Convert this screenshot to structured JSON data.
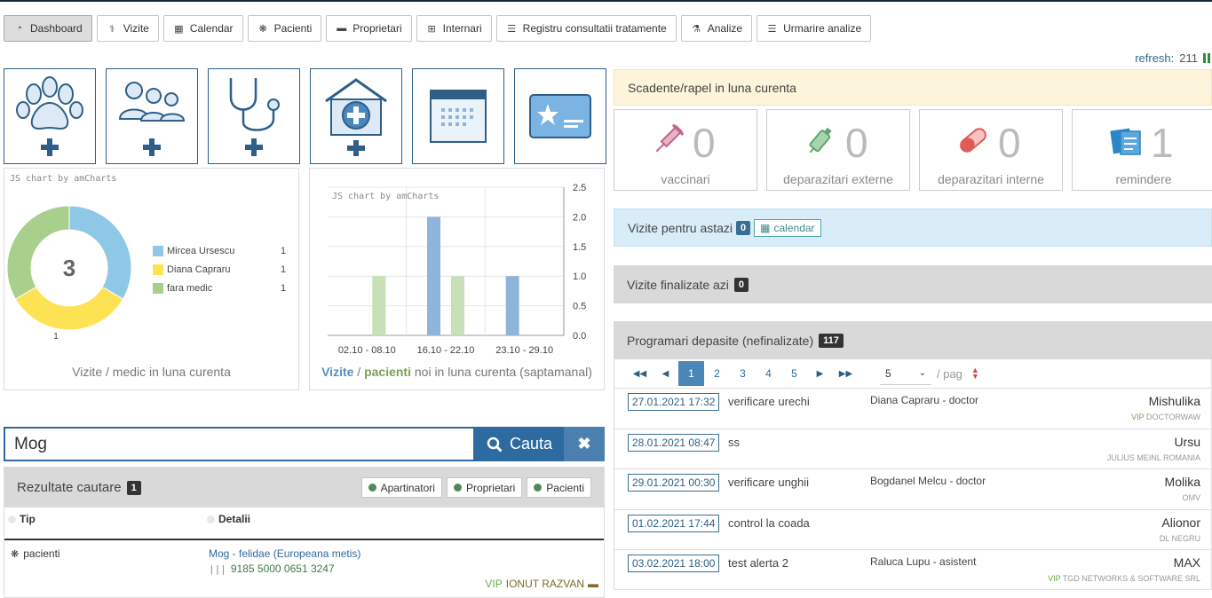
{
  "nav": [
    {
      "label": "Dashboard",
      "icon": "dashboard-icon",
      "glyph": "◔",
      "active": true
    },
    {
      "label": "Vizite",
      "icon": "stethoscope-icon",
      "glyph": "⚕"
    },
    {
      "label": "Calendar",
      "icon": "calendar-icon",
      "glyph": "▦"
    },
    {
      "label": "Pacienti",
      "icon": "paw-icon",
      "glyph": "❋"
    },
    {
      "label": "Proprietari",
      "icon": "briefcase-icon",
      "glyph": "▬"
    },
    {
      "label": "Internari",
      "icon": "hospital-icon",
      "glyph": "⊞"
    },
    {
      "label": "Registru consultatii tratamente",
      "icon": "list-icon",
      "glyph": "☰"
    },
    {
      "label": "Analize",
      "icon": "flask-icon",
      "glyph": "⚗"
    },
    {
      "label": "Urmarire analize",
      "icon": "list-icon",
      "glyph": "☰"
    }
  ],
  "refresh": {
    "label": "refresh:",
    "value": "211"
  },
  "tiles": [
    {
      "icon": "add-patient-paw-icon"
    },
    {
      "icon": "add-owner-people-icon"
    },
    {
      "icon": "add-visit-stethoscope-icon"
    },
    {
      "icon": "add-hospitalization-icon"
    },
    {
      "icon": "calendar-large-icon"
    },
    {
      "icon": "vip-card-icon"
    }
  ],
  "donut_panel": {
    "credit": "JS chart by amCharts",
    "caption": "Vizite / medic in luna curenta",
    "center_label": "3",
    "slice_label": "1"
  },
  "bar_panel": {
    "credit": "JS chart by amCharts",
    "caption_vizite": "Vizite",
    "caption_sep": " / ",
    "caption_pacienti": "pacienti",
    "caption_rest": " noi in luna curenta (saptamanal)"
  },
  "chart_data": [
    {
      "type": "pie",
      "categories": [
        "Mircea Ursescu",
        "Diana Capraru",
        "fara medic"
      ],
      "values": [
        1,
        1,
        1
      ],
      "colors": [
        "#8ec8e6",
        "#fde354",
        "#a9cf8c"
      ],
      "center_text": "3"
    },
    {
      "type": "bar",
      "categories": [
        "02.10 - 08.10",
        "16.10 - 22.10",
        "23.10 - 29.10"
      ],
      "ylim": [
        0,
        2.5
      ],
      "yticks": [
        "2.5",
        "2.0",
        "1.5",
        "1.0",
        "0.5",
        "0.0"
      ],
      "series": [
        {
          "name": "Vizite",
          "color": "#8fb4d9",
          "values": [
            0,
            2,
            1
          ]
        },
        {
          "name": "pacienti",
          "color": "#c8dfb8",
          "values": [
            1,
            1,
            0
          ]
        }
      ]
    }
  ],
  "search": {
    "value": "Mog",
    "button_label": "Cauta",
    "clear_label": "✖"
  },
  "results": {
    "title": "Rezultate cautare",
    "count": "1",
    "filters": [
      "Apartinatori",
      "Proprietari",
      "Pacienti"
    ],
    "columns": [
      "Tip",
      "Detalii"
    ],
    "rows": [
      {
        "type": "pacienti",
        "name": "Mog - felidae (Europeana metis)",
        "code": "9185 5000 0651 3247",
        "vip": "VIP",
        "owner": "IONUT RAZVAN"
      }
    ]
  },
  "scadente": {
    "title": "Scadente/rapel in luna curenta"
  },
  "counters": [
    {
      "label": "vaccinari",
      "value": "0",
      "icon": "syringe-icon",
      "color": "#c2648a"
    },
    {
      "label": "deparazitari externe",
      "value": "0",
      "icon": "spray-icon",
      "color": "#5ea86a"
    },
    {
      "label": "deparazitari interne",
      "value": "0",
      "icon": "pill-icon",
      "color": "#e05a5a"
    },
    {
      "label": "remindere",
      "value": "1",
      "icon": "notes-icon",
      "color": "#2b86c5"
    }
  ],
  "visits_today": {
    "label": "Vizite pentru astazi",
    "count": "0",
    "calendar_label": "calendar"
  },
  "visits_done": {
    "label": "Vizite finalizate azi",
    "count": "0"
  },
  "appointments": {
    "label": "Programari depasite (nefinalizate)",
    "count": "117",
    "pages": [
      "1",
      "2",
      "3",
      "4",
      "5"
    ],
    "per_page": "5",
    "per_page_label": "/ pag",
    "rows": [
      {
        "date": "27.01.2021 17:32",
        "desc": "verificare urechi",
        "doctor": "Diana Capraru - doctor",
        "patient": "Mishulika",
        "vip": "VIP",
        "owner": "DOCTORWAW"
      },
      {
        "date": "28.01.2021 08:47",
        "desc": "ss",
        "doctor": "",
        "patient": "Ursu",
        "vip": "",
        "owner": "JULIUS MEINL ROMANIA"
      },
      {
        "date": "29.01.2021 00:30",
        "desc": "verificare unghii",
        "doctor": "Bogdanel Melcu - doctor",
        "patient": "Molika",
        "vip": "",
        "owner": "OMV"
      },
      {
        "date": "01.02.2021 17:44",
        "desc": "control la coada",
        "doctor": "",
        "patient": "Alionor",
        "vip": "",
        "owner": "DL NEGRU"
      },
      {
        "date": "03.02.2021 18:00",
        "desc": "test alerta 2",
        "doctor": "Raluca Lupu - asistent",
        "patient": "MAX",
        "vip": "VIP",
        "owner": "TGD NETWORKS & SOFTWARE SRL"
      }
    ]
  }
}
